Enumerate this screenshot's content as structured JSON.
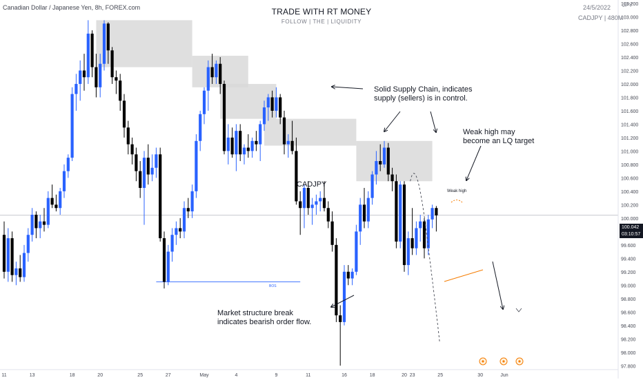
{
  "header": {
    "symbol_desc": "Canadian Dollar / Japanese Yen, 8h, FOREX.com",
    "title": "TRADE WITH RT MONEY",
    "subtitle": "FOLLOW  |  THE  |  LIQUIDITY",
    "date": "24/5/2022",
    "symbol_tf": "CADJPY | 480M",
    "currency": "JPY"
  },
  "price_tag": {
    "price": "100.042",
    "countdown": "03:10:57"
  },
  "annotations": {
    "supply_note": "Solid Supply Chain, indicates\nsupply (sellers) is in control.",
    "weak_high_note": "Weak high may\nbecome an LQ target",
    "mss_note": "Market structure break\nindicates bearish order flow.",
    "symbol_label": "CADJPY",
    "weak_high_label": "Weak high",
    "bos_label": "BOS"
  },
  "colors": {
    "bull": "#2962ff",
    "bear": "#000000",
    "zone": "#d9d9d9",
    "price_line": "#b2b5be",
    "bos_line": "#2962ff",
    "accent_orange": "#f57c00"
  },
  "chart_data": {
    "type": "candlestick",
    "timeframe": "8h",
    "ylim": [
      97.7,
      103.2
    ],
    "y_ticks": [
      "103.200",
      "103.000",
      "102.800",
      "102.600",
      "102.400",
      "102.200",
      "102.000",
      "101.800",
      "101.600",
      "101.400",
      "101.200",
      "101.000",
      "100.800",
      "100.600",
      "100.400",
      "100.200",
      "100.000",
      "99.800",
      "99.600",
      "99.400",
      "99.200",
      "99.000",
      "98.800",
      "98.600",
      "98.400",
      "98.200",
      "98.000",
      "97.800"
    ],
    "x_tick_labels": [
      {
        "label": "11",
        "bar": 0
      },
      {
        "label": "13",
        "bar": 7
      },
      {
        "label": "18",
        "bar": 17
      },
      {
        "label": "20",
        "bar": 24
      },
      {
        "label": "25",
        "bar": 34
      },
      {
        "label": "27",
        "bar": 41
      },
      {
        "label": "May",
        "bar": 50
      },
      {
        "label": "4",
        "bar": 58
      },
      {
        "label": "9",
        "bar": 68
      },
      {
        "label": "11",
        "bar": 76
      },
      {
        "label": "16",
        "bar": 85
      },
      {
        "label": "18",
        "bar": 92
      },
      {
        "label": "20",
        "bar": 100
      },
      {
        "label": "23",
        "bar": 102
      },
      {
        "label": "25",
        "bar": 109
      },
      {
        "label": "30",
        "bar": 119
      },
      {
        "label": "Jun",
        "bar": 125
      }
    ],
    "candles": [
      {
        "o": 99.75,
        "h": 99.95,
        "l": 99.1,
        "c": 99.2
      },
      {
        "o": 99.2,
        "h": 99.85,
        "l": 99.05,
        "c": 99.7
      },
      {
        "o": 99.7,
        "h": 99.8,
        "l": 99.05,
        "c": 99.15
      },
      {
        "o": 99.15,
        "h": 99.35,
        "l": 99.0,
        "c": 99.25
      },
      {
        "o": 99.25,
        "h": 99.45,
        "l": 99.05,
        "c": 99.12
      },
      {
        "o": 99.12,
        "h": 99.6,
        "l": 99.05,
        "c": 99.48
      },
      {
        "o": 99.48,
        "h": 99.85,
        "l": 99.35,
        "c": 99.75
      },
      {
        "o": 99.75,
        "h": 100.15,
        "l": 99.65,
        "c": 100.05
      },
      {
        "o": 100.05,
        "h": 100.1,
        "l": 99.7,
        "c": 99.85
      },
      {
        "o": 99.85,
        "h": 100.05,
        "l": 99.7,
        "c": 99.95
      },
      {
        "o": 99.95,
        "h": 100.15,
        "l": 99.8,
        "c": 99.9
      },
      {
        "o": 99.9,
        "h": 100.4,
        "l": 99.85,
        "c": 100.3
      },
      {
        "o": 100.3,
        "h": 100.5,
        "l": 100.15,
        "c": 100.2
      },
      {
        "o": 100.2,
        "h": 100.35,
        "l": 100.1,
        "c": 100.15
      },
      {
        "o": 100.15,
        "h": 100.45,
        "l": 100.05,
        "c": 100.4
      },
      {
        "o": 100.4,
        "h": 100.8,
        "l": 100.3,
        "c": 100.7
      },
      {
        "o": 100.7,
        "h": 100.95,
        "l": 100.6,
        "c": 100.9
      },
      {
        "o": 100.9,
        "h": 101.95,
        "l": 100.85,
        "c": 101.85
      },
      {
        "o": 101.85,
        "h": 102.15,
        "l": 101.6,
        "c": 102.0
      },
      {
        "o": 102.0,
        "h": 102.35,
        "l": 101.75,
        "c": 102.2
      },
      {
        "o": 102.2,
        "h": 102.45,
        "l": 101.9,
        "c": 102.1
      },
      {
        "o": 102.1,
        "h": 102.95,
        "l": 102.0,
        "c": 102.75
      },
      {
        "o": 102.75,
        "h": 102.8,
        "l": 102.1,
        "c": 102.25
      },
      {
        "o": 102.25,
        "h": 102.45,
        "l": 101.8,
        "c": 101.95
      },
      {
        "o": 101.95,
        "h": 102.45,
        "l": 101.8,
        "c": 102.3
      },
      {
        "o": 102.3,
        "h": 102.95,
        "l": 102.2,
        "c": 102.9
      },
      {
        "o": 102.9,
        "h": 102.92,
        "l": 102.3,
        "c": 102.5
      },
      {
        "o": 102.5,
        "h": 102.55,
        "l": 102.0,
        "c": 102.1
      },
      {
        "o": 102.1,
        "h": 102.2,
        "l": 101.85,
        "c": 102.05
      },
      {
        "o": 102.05,
        "h": 102.15,
        "l": 101.6,
        "c": 101.75
      },
      {
        "o": 101.75,
        "h": 101.85,
        "l": 101.2,
        "c": 101.35
      },
      {
        "o": 101.35,
        "h": 101.45,
        "l": 100.95,
        "c": 101.1
      },
      {
        "o": 101.1,
        "h": 101.2,
        "l": 100.8,
        "c": 100.95
      },
      {
        "o": 100.95,
        "h": 101.05,
        "l": 100.55,
        "c": 100.7
      },
      {
        "o": 100.7,
        "h": 100.85,
        "l": 100.3,
        "c": 100.45
      },
      {
        "o": 100.45,
        "h": 101.0,
        "l": 99.9,
        "c": 100.9
      },
      {
        "o": 100.9,
        "h": 101.1,
        "l": 100.5,
        "c": 100.65
      },
      {
        "o": 100.65,
        "h": 100.95,
        "l": 100.55,
        "c": 100.75
      },
      {
        "o": 100.75,
        "h": 101.05,
        "l": 100.6,
        "c": 100.95
      },
      {
        "o": 100.95,
        "h": 101.05,
        "l": 99.65,
        "c": 99.7
      },
      {
        "o": 99.7,
        "h": 99.8,
        "l": 98.95,
        "c": 99.05
      },
      {
        "o": 99.05,
        "h": 99.6,
        "l": 99.0,
        "c": 99.5
      },
      {
        "o": 99.5,
        "h": 99.85,
        "l": 99.35,
        "c": 99.75
      },
      {
        "o": 99.75,
        "h": 99.95,
        "l": 99.6,
        "c": 99.85
      },
      {
        "o": 99.85,
        "h": 100.0,
        "l": 99.7,
        "c": 99.8
      },
      {
        "o": 99.8,
        "h": 100.25,
        "l": 99.7,
        "c": 100.15
      },
      {
        "o": 100.15,
        "h": 100.3,
        "l": 100.0,
        "c": 100.1
      },
      {
        "o": 100.1,
        "h": 100.5,
        "l": 100.0,
        "c": 100.4
      },
      {
        "o": 100.4,
        "h": 101.25,
        "l": 100.3,
        "c": 101.15
      },
      {
        "o": 101.15,
        "h": 101.6,
        "l": 101.0,
        "c": 101.55
      },
      {
        "o": 101.55,
        "h": 101.95,
        "l": 101.4,
        "c": 101.9
      },
      {
        "o": 101.9,
        "h": 102.35,
        "l": 101.6,
        "c": 102.25
      },
      {
        "o": 102.25,
        "h": 102.45,
        "l": 102.0,
        "c": 102.1
      },
      {
        "o": 102.1,
        "h": 102.35,
        "l": 102.0,
        "c": 102.3
      },
      {
        "o": 102.3,
        "h": 102.4,
        "l": 101.85,
        "c": 102.0
      },
      {
        "o": 102.0,
        "h": 102.05,
        "l": 100.95,
        "c": 101.0
      },
      {
        "o": 101.0,
        "h": 101.4,
        "l": 100.8,
        "c": 101.2
      },
      {
        "o": 101.2,
        "h": 101.35,
        "l": 100.9,
        "c": 100.95
      },
      {
        "o": 100.95,
        "h": 101.4,
        "l": 100.7,
        "c": 101.3
      },
      {
        "o": 101.3,
        "h": 101.4,
        "l": 100.85,
        "c": 100.95
      },
      {
        "o": 100.95,
        "h": 101.1,
        "l": 100.8,
        "c": 101.05
      },
      {
        "o": 101.05,
        "h": 101.25,
        "l": 100.9,
        "c": 101.0
      },
      {
        "o": 101.0,
        "h": 101.2,
        "l": 100.9,
        "c": 101.15
      },
      {
        "o": 101.15,
        "h": 101.3,
        "l": 101.0,
        "c": 101.1
      },
      {
        "o": 101.1,
        "h": 101.45,
        "l": 100.85,
        "c": 101.4
      },
      {
        "o": 101.4,
        "h": 101.75,
        "l": 101.3,
        "c": 101.65
      },
      {
        "o": 101.65,
        "h": 101.85,
        "l": 101.45,
        "c": 101.8
      },
      {
        "o": 101.8,
        "h": 101.9,
        "l": 101.5,
        "c": 101.6
      },
      {
        "o": 101.6,
        "h": 101.95,
        "l": 101.5,
        "c": 101.8
      },
      {
        "o": 101.8,
        "h": 101.85,
        "l": 101.4,
        "c": 101.5
      },
      {
        "o": 101.5,
        "h": 101.6,
        "l": 100.95,
        "c": 101.1
      },
      {
        "o": 101.1,
        "h": 101.25,
        "l": 100.9,
        "c": 101.15
      },
      {
        "o": 101.15,
        "h": 101.45,
        "l": 100.95,
        "c": 101.0
      },
      {
        "o": 101.0,
        "h": 101.2,
        "l": 100.2,
        "c": 100.25
      },
      {
        "o": 100.25,
        "h": 100.4,
        "l": 99.75,
        "c": 100.15
      },
      {
        "o": 100.15,
        "h": 100.5,
        "l": 99.85,
        "c": 100.45
      },
      {
        "o": 100.45,
        "h": 100.55,
        "l": 100.05,
        "c": 100.15
      },
      {
        "o": 100.15,
        "h": 100.3,
        "l": 99.9,
        "c": 100.2
      },
      {
        "o": 100.2,
        "h": 100.35,
        "l": 100.05,
        "c": 100.25
      },
      {
        "o": 100.25,
        "h": 100.4,
        "l": 100.1,
        "c": 100.3
      },
      {
        "o": 100.3,
        "h": 100.55,
        "l": 100.1,
        "c": 100.15
      },
      {
        "o": 100.15,
        "h": 100.25,
        "l": 99.85,
        "c": 99.95
      },
      {
        "o": 99.95,
        "h": 100.1,
        "l": 99.5,
        "c": 99.6
      },
      {
        "o": 99.6,
        "h": 99.7,
        "l": 98.45,
        "c": 98.55
      },
      {
        "o": 98.55,
        "h": 98.7,
        "l": 97.8,
        "c": 98.45
      },
      {
        "o": 98.45,
        "h": 99.3,
        "l": 98.4,
        "c": 99.2
      },
      {
        "o": 99.2,
        "h": 99.3,
        "l": 99.0,
        "c": 99.1
      },
      {
        "o": 99.1,
        "h": 99.25,
        "l": 99.0,
        "c": 99.2
      },
      {
        "o": 99.2,
        "h": 99.9,
        "l": 99.15,
        "c": 99.8
      },
      {
        "o": 99.8,
        "h": 100.3,
        "l": 99.6,
        "c": 100.2
      },
      {
        "o": 100.2,
        "h": 100.45,
        "l": 99.85,
        "c": 99.95
      },
      {
        "o": 99.95,
        "h": 100.4,
        "l": 99.85,
        "c": 100.3
      },
      {
        "o": 100.3,
        "h": 100.7,
        "l": 100.2,
        "c": 100.65
      },
      {
        "o": 100.65,
        "h": 101.0,
        "l": 100.5,
        "c": 100.85
      },
      {
        "o": 100.85,
        "h": 101.1,
        "l": 100.7,
        "c": 100.8
      },
      {
        "o": 100.8,
        "h": 101.15,
        "l": 100.75,
        "c": 101.05
      },
      {
        "o": 101.05,
        "h": 101.12,
        "l": 100.55,
        "c": 100.65
      },
      {
        "o": 100.65,
        "h": 100.75,
        "l": 100.4,
        "c": 100.55
      },
      {
        "o": 100.55,
        "h": 100.65,
        "l": 99.55,
        "c": 99.65
      },
      {
        "o": 99.65,
        "h": 100.55,
        "l": 99.55,
        "c": 100.5
      },
      {
        "o": 100.5,
        "h": 100.55,
        "l": 99.2,
        "c": 99.3
      },
      {
        "o": 99.3,
        "h": 99.8,
        "l": 99.15,
        "c": 99.7
      },
      {
        "o": 99.7,
        "h": 100.15,
        "l": 99.45,
        "c": 99.55
      },
      {
        "o": 99.55,
        "h": 99.95,
        "l": 99.45,
        "c": 99.85
      },
      {
        "o": 99.85,
        "h": 100.05,
        "l": 99.65,
        "c": 99.95
      },
      {
        "o": 99.95,
        "h": 100.0,
        "l": 99.4,
        "c": 99.55
      },
      {
        "o": 99.55,
        "h": 100.05,
        "l": 99.45,
        "c": 99.98
      },
      {
        "o": 99.98,
        "h": 100.2,
        "l": 99.85,
        "c": 100.15
      },
      {
        "o": 100.15,
        "h": 100.18,
        "l": 99.8,
        "c": 100.04
      }
    ],
    "supply_zones": [
      {
        "bar_start": 23,
        "bar_end": 47,
        "top": 102.95,
        "bottom": 102.25
      },
      {
        "bar_start": 47,
        "bar_end": 61,
        "top": 102.42,
        "bottom": 101.95
      },
      {
        "bar_start": 54,
        "bar_end": 68,
        "top": 102.0,
        "bottom": 101.48
      },
      {
        "bar_start": 65,
        "bar_end": 88,
        "top": 101.48,
        "bottom": 101.08
      },
      {
        "bar_start": 88,
        "bar_end": 107,
        "top": 101.15,
        "bottom": 100.55
      }
    ],
    "bos_line": {
      "bar_start": 38,
      "bar_end": 74,
      "price": 99.05
    },
    "current_price": 100.042,
    "projection": [
      {
        "bar": 101.5,
        "price": 100.55
      },
      {
        "bar": 103,
        "price": 100.8
      },
      {
        "bar": 105.5,
        "price": 99.8
      },
      {
        "bar": 108,
        "price": 98.75
      }
    ]
  }
}
